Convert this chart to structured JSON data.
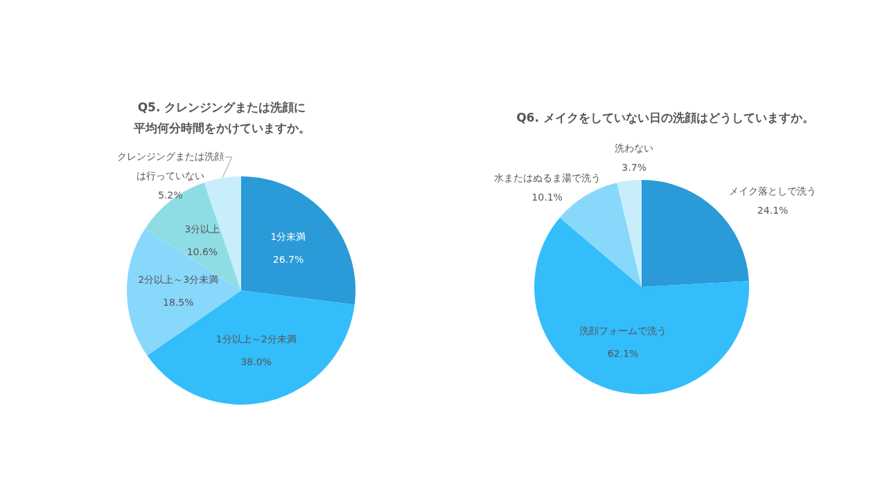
{
  "chart_data": [
    {
      "type": "pie",
      "title": "Q5. クレンジングまたは洗顔に平均何分時間をかけていますか。",
      "categories": [
        "1分未満",
        "1分以上～2分未満",
        "2分以上～3分未満",
        "3分以上",
        "クレンジングまたは洗顔は行っていない"
      ],
      "values": [
        26.7,
        38.0,
        18.5,
        10.6,
        5.2
      ],
      "value_labels": [
        "26.7%",
        "38.0%",
        "18.5%",
        "10.6%",
        "5.2%"
      ],
      "colors": [
        "#2a9ad8",
        "#33bdfa",
        "#88d8fc",
        "#8fdde4",
        "#c8eefc"
      ],
      "legend": false
    },
    {
      "type": "pie",
      "title": "Q6. メイクをしていない日の洗顔はどうしていますか。",
      "categories": [
        "メイク落としで洗う",
        "洗顔フォームで洗う",
        "水またはぬるま湯で洗う",
        "洗わない"
      ],
      "values": [
        24.1,
        62.1,
        10.1,
        3.7
      ],
      "value_labels": [
        "24.1%",
        "62.1%",
        "10.1%",
        "3.7%"
      ],
      "colors": [
        "#2a9ad8",
        "#33bdfa",
        "#88d8fc",
        "#c8eefc"
      ],
      "legend": false
    }
  ]
}
